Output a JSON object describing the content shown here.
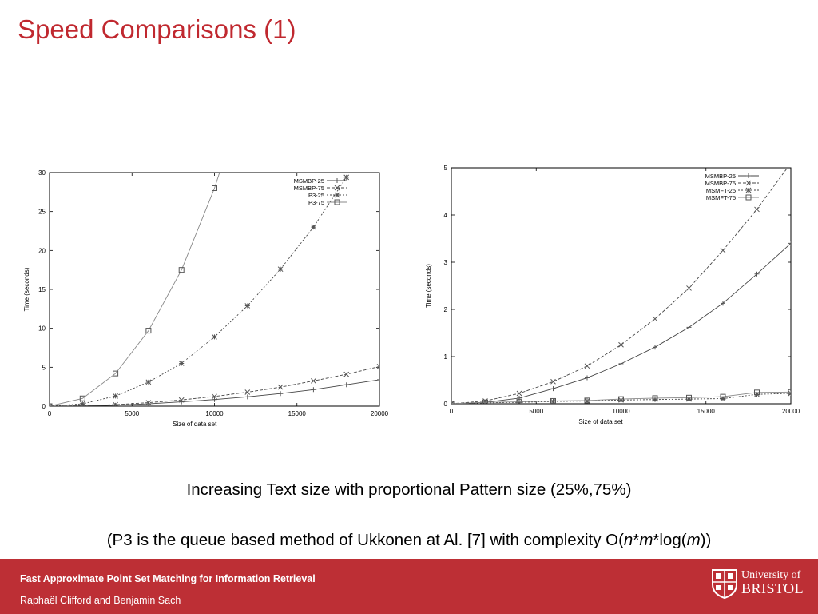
{
  "slide": {
    "title": "Speed Comparisons (1)",
    "caption1": "Increasing Text size with proportional Pattern size (25%,75%)",
    "caption2_prefix": "(P3 is the queue based method of Ukkonen at Al. [7] with complexity O(",
    "caption2_n": "n",
    "caption2_star1": "*",
    "caption2_m": "m",
    "caption2_log": "*log(",
    "caption2_m2": "m",
    "caption2_suffix": "))"
  },
  "footer": {
    "title": "Fast Approximate Point Set Matching for Information Retrieval",
    "authors": "Raphaël Clifford and Benjamin Sach",
    "logo_line1": "University of",
    "logo_line2": "BRISTOL",
    "background": "#bd2f35"
  },
  "colors": {
    "title": "#c0282f",
    "line": "#555555",
    "grid": "#000000"
  },
  "chart_data": [
    {
      "type": "line",
      "title": "",
      "xlabel": "Size of data set",
      "ylabel": "Time (seconds)",
      "xlim": [
        0,
        20000
      ],
      "ylim": [
        0,
        30
      ],
      "xticks": [
        0,
        5000,
        10000,
        15000,
        20000
      ],
      "yticks": [
        0,
        5,
        10,
        15,
        20,
        25,
        30
      ],
      "legend_position": "top-right",
      "series": [
        {
          "name": "MSMBP-25",
          "marker": "plus",
          "dash": "solid",
          "x": [
            0,
            2000,
            4000,
            6000,
            8000,
            10000,
            12000,
            14000,
            16000,
            18000,
            20000
          ],
          "y": [
            0,
            0.03,
            0.12,
            0.3,
            0.55,
            0.85,
            1.2,
            1.62,
            2.13,
            2.75,
            3.4
          ]
        },
        {
          "name": "MSMBP-75",
          "marker": "cross",
          "dash": "dashed",
          "x": [
            0,
            2000,
            4000,
            6000,
            8000,
            10000,
            12000,
            14000,
            16000,
            18000,
            20000
          ],
          "y": [
            0,
            0.06,
            0.2,
            0.45,
            0.8,
            1.25,
            1.8,
            2.45,
            3.25,
            4.1,
            5.1
          ]
        },
        {
          "name": "P3-25",
          "marker": "asterisk",
          "dash": "dotted",
          "x": [
            0,
            2000,
            4000,
            6000,
            8000,
            10000,
            12000,
            14000,
            16000,
            18000
          ],
          "y": [
            0,
            0.3,
            1.3,
            3.1,
            5.5,
            8.9,
            12.9,
            17.6,
            23,
            29.4
          ]
        },
        {
          "name": "P3-75",
          "marker": "square",
          "dash": "solid-light",
          "x": [
            0,
            2000,
            4000,
            6000,
            8000,
            10000,
            11000
          ],
          "y": [
            0,
            1.0,
            4.2,
            9.7,
            17.5,
            28,
            34.5
          ]
        }
      ]
    },
    {
      "type": "line",
      "title": "",
      "xlabel": "Size of data set",
      "ylabel": "Time (seconds)",
      "xlim": [
        0,
        20000
      ],
      "ylim": [
        0,
        5
      ],
      "xticks": [
        0,
        5000,
        10000,
        15000,
        20000
      ],
      "yticks": [
        0,
        1,
        2,
        3,
        4,
        5
      ],
      "legend_position": "top-right",
      "series": [
        {
          "name": "MSMBP-25",
          "marker": "plus",
          "dash": "solid",
          "x": [
            0,
            2000,
            4000,
            6000,
            8000,
            10000,
            12000,
            14000,
            16000,
            18000,
            20000
          ],
          "y": [
            0,
            0.03,
            0.12,
            0.32,
            0.55,
            0.85,
            1.2,
            1.62,
            2.13,
            2.75,
            3.4
          ]
        },
        {
          "name": "MSMBP-75",
          "marker": "cross",
          "dash": "dashed",
          "x": [
            0,
            2000,
            4000,
            6000,
            8000,
            10000,
            12000,
            14000,
            16000,
            18000,
            20000
          ],
          "y": [
            0,
            0.06,
            0.22,
            0.47,
            0.8,
            1.25,
            1.8,
            2.45,
            3.25,
            4.12,
            5.1
          ]
        },
        {
          "name": "MSMFT-25",
          "marker": "asterisk",
          "dash": "dotted",
          "x": [
            0,
            2000,
            4000,
            6000,
            8000,
            10000,
            12000,
            14000,
            16000,
            18000,
            20000
          ],
          "y": [
            0,
            0.02,
            0.03,
            0.05,
            0.06,
            0.08,
            0.09,
            0.1,
            0.11,
            0.2,
            0.22
          ]
        },
        {
          "name": "MSMFT-75",
          "marker": "square",
          "dash": "solid-light",
          "x": [
            0,
            2000,
            4000,
            6000,
            8000,
            10000,
            12000,
            14000,
            16000,
            18000,
            20000
          ],
          "y": [
            0,
            0.03,
            0.04,
            0.06,
            0.07,
            0.1,
            0.12,
            0.13,
            0.15,
            0.24,
            0.25
          ]
        }
      ]
    }
  ]
}
